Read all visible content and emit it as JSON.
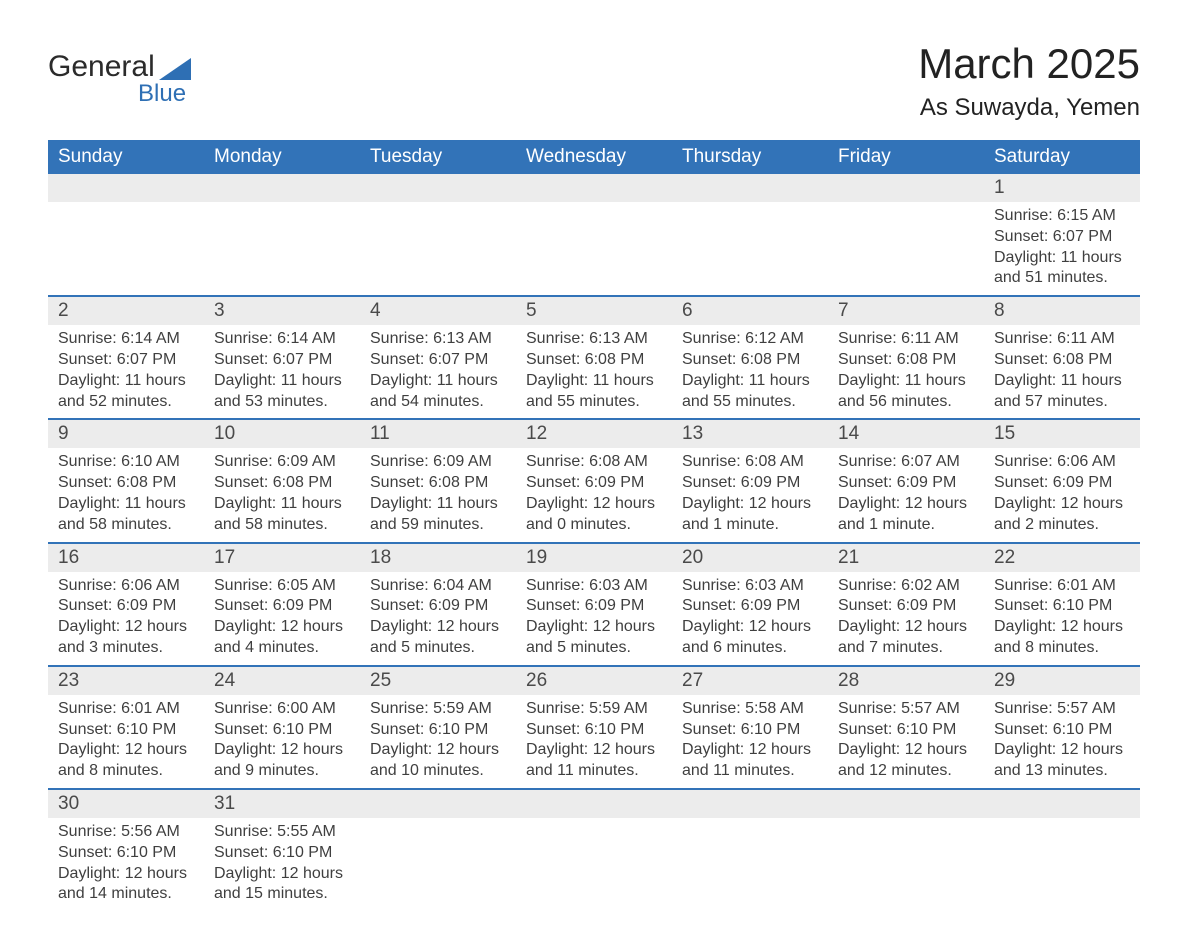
{
  "logo": {
    "word1": "General",
    "word2": "Blue"
  },
  "title": "March 2025",
  "location": "As Suwayda, Yemen",
  "colors": {
    "header_bg": "#3273b8",
    "header_text": "#ffffff",
    "daynum_bg": "#ececec",
    "row_divider": "#3273b8",
    "body_text": "#3f3f3f",
    "title_text": "#222222"
  },
  "fonts": {
    "title_size_pt": 32,
    "location_size_pt": 18,
    "header_size_pt": 14,
    "cell_size_pt": 12
  },
  "day_headers": [
    "Sunday",
    "Monday",
    "Tuesday",
    "Wednesday",
    "Thursday",
    "Friday",
    "Saturday"
  ],
  "weeks": [
    {
      "nums": [
        "",
        "",
        "",
        "",
        "",
        "",
        "1"
      ],
      "cells": [
        null,
        null,
        null,
        null,
        null,
        null,
        {
          "sunrise": "Sunrise: 6:15 AM",
          "sunset": "Sunset: 6:07 PM",
          "day1": "Daylight: 11 hours",
          "day2": "and 51 minutes."
        }
      ]
    },
    {
      "nums": [
        "2",
        "3",
        "4",
        "5",
        "6",
        "7",
        "8"
      ],
      "cells": [
        {
          "sunrise": "Sunrise: 6:14 AM",
          "sunset": "Sunset: 6:07 PM",
          "day1": "Daylight: 11 hours",
          "day2": "and 52 minutes."
        },
        {
          "sunrise": "Sunrise: 6:14 AM",
          "sunset": "Sunset: 6:07 PM",
          "day1": "Daylight: 11 hours",
          "day2": "and 53 minutes."
        },
        {
          "sunrise": "Sunrise: 6:13 AM",
          "sunset": "Sunset: 6:07 PM",
          "day1": "Daylight: 11 hours",
          "day2": "and 54 minutes."
        },
        {
          "sunrise": "Sunrise: 6:13 AM",
          "sunset": "Sunset: 6:08 PM",
          "day1": "Daylight: 11 hours",
          "day2": "and 55 minutes."
        },
        {
          "sunrise": "Sunrise: 6:12 AM",
          "sunset": "Sunset: 6:08 PM",
          "day1": "Daylight: 11 hours",
          "day2": "and 55 minutes."
        },
        {
          "sunrise": "Sunrise: 6:11 AM",
          "sunset": "Sunset: 6:08 PM",
          "day1": "Daylight: 11 hours",
          "day2": "and 56 minutes."
        },
        {
          "sunrise": "Sunrise: 6:11 AM",
          "sunset": "Sunset: 6:08 PM",
          "day1": "Daylight: 11 hours",
          "day2": "and 57 minutes."
        }
      ]
    },
    {
      "nums": [
        "9",
        "10",
        "11",
        "12",
        "13",
        "14",
        "15"
      ],
      "cells": [
        {
          "sunrise": "Sunrise: 6:10 AM",
          "sunset": "Sunset: 6:08 PM",
          "day1": "Daylight: 11 hours",
          "day2": "and 58 minutes."
        },
        {
          "sunrise": "Sunrise: 6:09 AM",
          "sunset": "Sunset: 6:08 PM",
          "day1": "Daylight: 11 hours",
          "day2": "and 58 minutes."
        },
        {
          "sunrise": "Sunrise: 6:09 AM",
          "sunset": "Sunset: 6:08 PM",
          "day1": "Daylight: 11 hours",
          "day2": "and 59 minutes."
        },
        {
          "sunrise": "Sunrise: 6:08 AM",
          "sunset": "Sunset: 6:09 PM",
          "day1": "Daylight: 12 hours",
          "day2": "and 0 minutes."
        },
        {
          "sunrise": "Sunrise: 6:08 AM",
          "sunset": "Sunset: 6:09 PM",
          "day1": "Daylight: 12 hours",
          "day2": "and 1 minute."
        },
        {
          "sunrise": "Sunrise: 6:07 AM",
          "sunset": "Sunset: 6:09 PM",
          "day1": "Daylight: 12 hours",
          "day2": "and 1 minute."
        },
        {
          "sunrise": "Sunrise: 6:06 AM",
          "sunset": "Sunset: 6:09 PM",
          "day1": "Daylight: 12 hours",
          "day2": "and 2 minutes."
        }
      ]
    },
    {
      "nums": [
        "16",
        "17",
        "18",
        "19",
        "20",
        "21",
        "22"
      ],
      "cells": [
        {
          "sunrise": "Sunrise: 6:06 AM",
          "sunset": "Sunset: 6:09 PM",
          "day1": "Daylight: 12 hours",
          "day2": "and 3 minutes."
        },
        {
          "sunrise": "Sunrise: 6:05 AM",
          "sunset": "Sunset: 6:09 PM",
          "day1": "Daylight: 12 hours",
          "day2": "and 4 minutes."
        },
        {
          "sunrise": "Sunrise: 6:04 AM",
          "sunset": "Sunset: 6:09 PM",
          "day1": "Daylight: 12 hours",
          "day2": "and 5 minutes."
        },
        {
          "sunrise": "Sunrise: 6:03 AM",
          "sunset": "Sunset: 6:09 PM",
          "day1": "Daylight: 12 hours",
          "day2": "and 5 minutes."
        },
        {
          "sunrise": "Sunrise: 6:03 AM",
          "sunset": "Sunset: 6:09 PM",
          "day1": "Daylight: 12 hours",
          "day2": "and 6 minutes."
        },
        {
          "sunrise": "Sunrise: 6:02 AM",
          "sunset": "Sunset: 6:09 PM",
          "day1": "Daylight: 12 hours",
          "day2": "and 7 minutes."
        },
        {
          "sunrise": "Sunrise: 6:01 AM",
          "sunset": "Sunset: 6:10 PM",
          "day1": "Daylight: 12 hours",
          "day2": "and 8 minutes."
        }
      ]
    },
    {
      "nums": [
        "23",
        "24",
        "25",
        "26",
        "27",
        "28",
        "29"
      ],
      "cells": [
        {
          "sunrise": "Sunrise: 6:01 AM",
          "sunset": "Sunset: 6:10 PM",
          "day1": "Daylight: 12 hours",
          "day2": "and 8 minutes."
        },
        {
          "sunrise": "Sunrise: 6:00 AM",
          "sunset": "Sunset: 6:10 PM",
          "day1": "Daylight: 12 hours",
          "day2": "and 9 minutes."
        },
        {
          "sunrise": "Sunrise: 5:59 AM",
          "sunset": "Sunset: 6:10 PM",
          "day1": "Daylight: 12 hours",
          "day2": "and 10 minutes."
        },
        {
          "sunrise": "Sunrise: 5:59 AM",
          "sunset": "Sunset: 6:10 PM",
          "day1": "Daylight: 12 hours",
          "day2": "and 11 minutes."
        },
        {
          "sunrise": "Sunrise: 5:58 AM",
          "sunset": "Sunset: 6:10 PM",
          "day1": "Daylight: 12 hours",
          "day2": "and 11 minutes."
        },
        {
          "sunrise": "Sunrise: 5:57 AM",
          "sunset": "Sunset: 6:10 PM",
          "day1": "Daylight: 12 hours",
          "day2": "and 12 minutes."
        },
        {
          "sunrise": "Sunrise: 5:57 AM",
          "sunset": "Sunset: 6:10 PM",
          "day1": "Daylight: 12 hours",
          "day2": "and 13 minutes."
        }
      ]
    },
    {
      "nums": [
        "30",
        "31",
        "",
        "",
        "",
        "",
        ""
      ],
      "cells": [
        {
          "sunrise": "Sunrise: 5:56 AM",
          "sunset": "Sunset: 6:10 PM",
          "day1": "Daylight: 12 hours",
          "day2": "and 14 minutes."
        },
        {
          "sunrise": "Sunrise: 5:55 AM",
          "sunset": "Sunset: 6:10 PM",
          "day1": "Daylight: 12 hours",
          "day2": "and 15 minutes."
        },
        null,
        null,
        null,
        null,
        null
      ]
    }
  ]
}
